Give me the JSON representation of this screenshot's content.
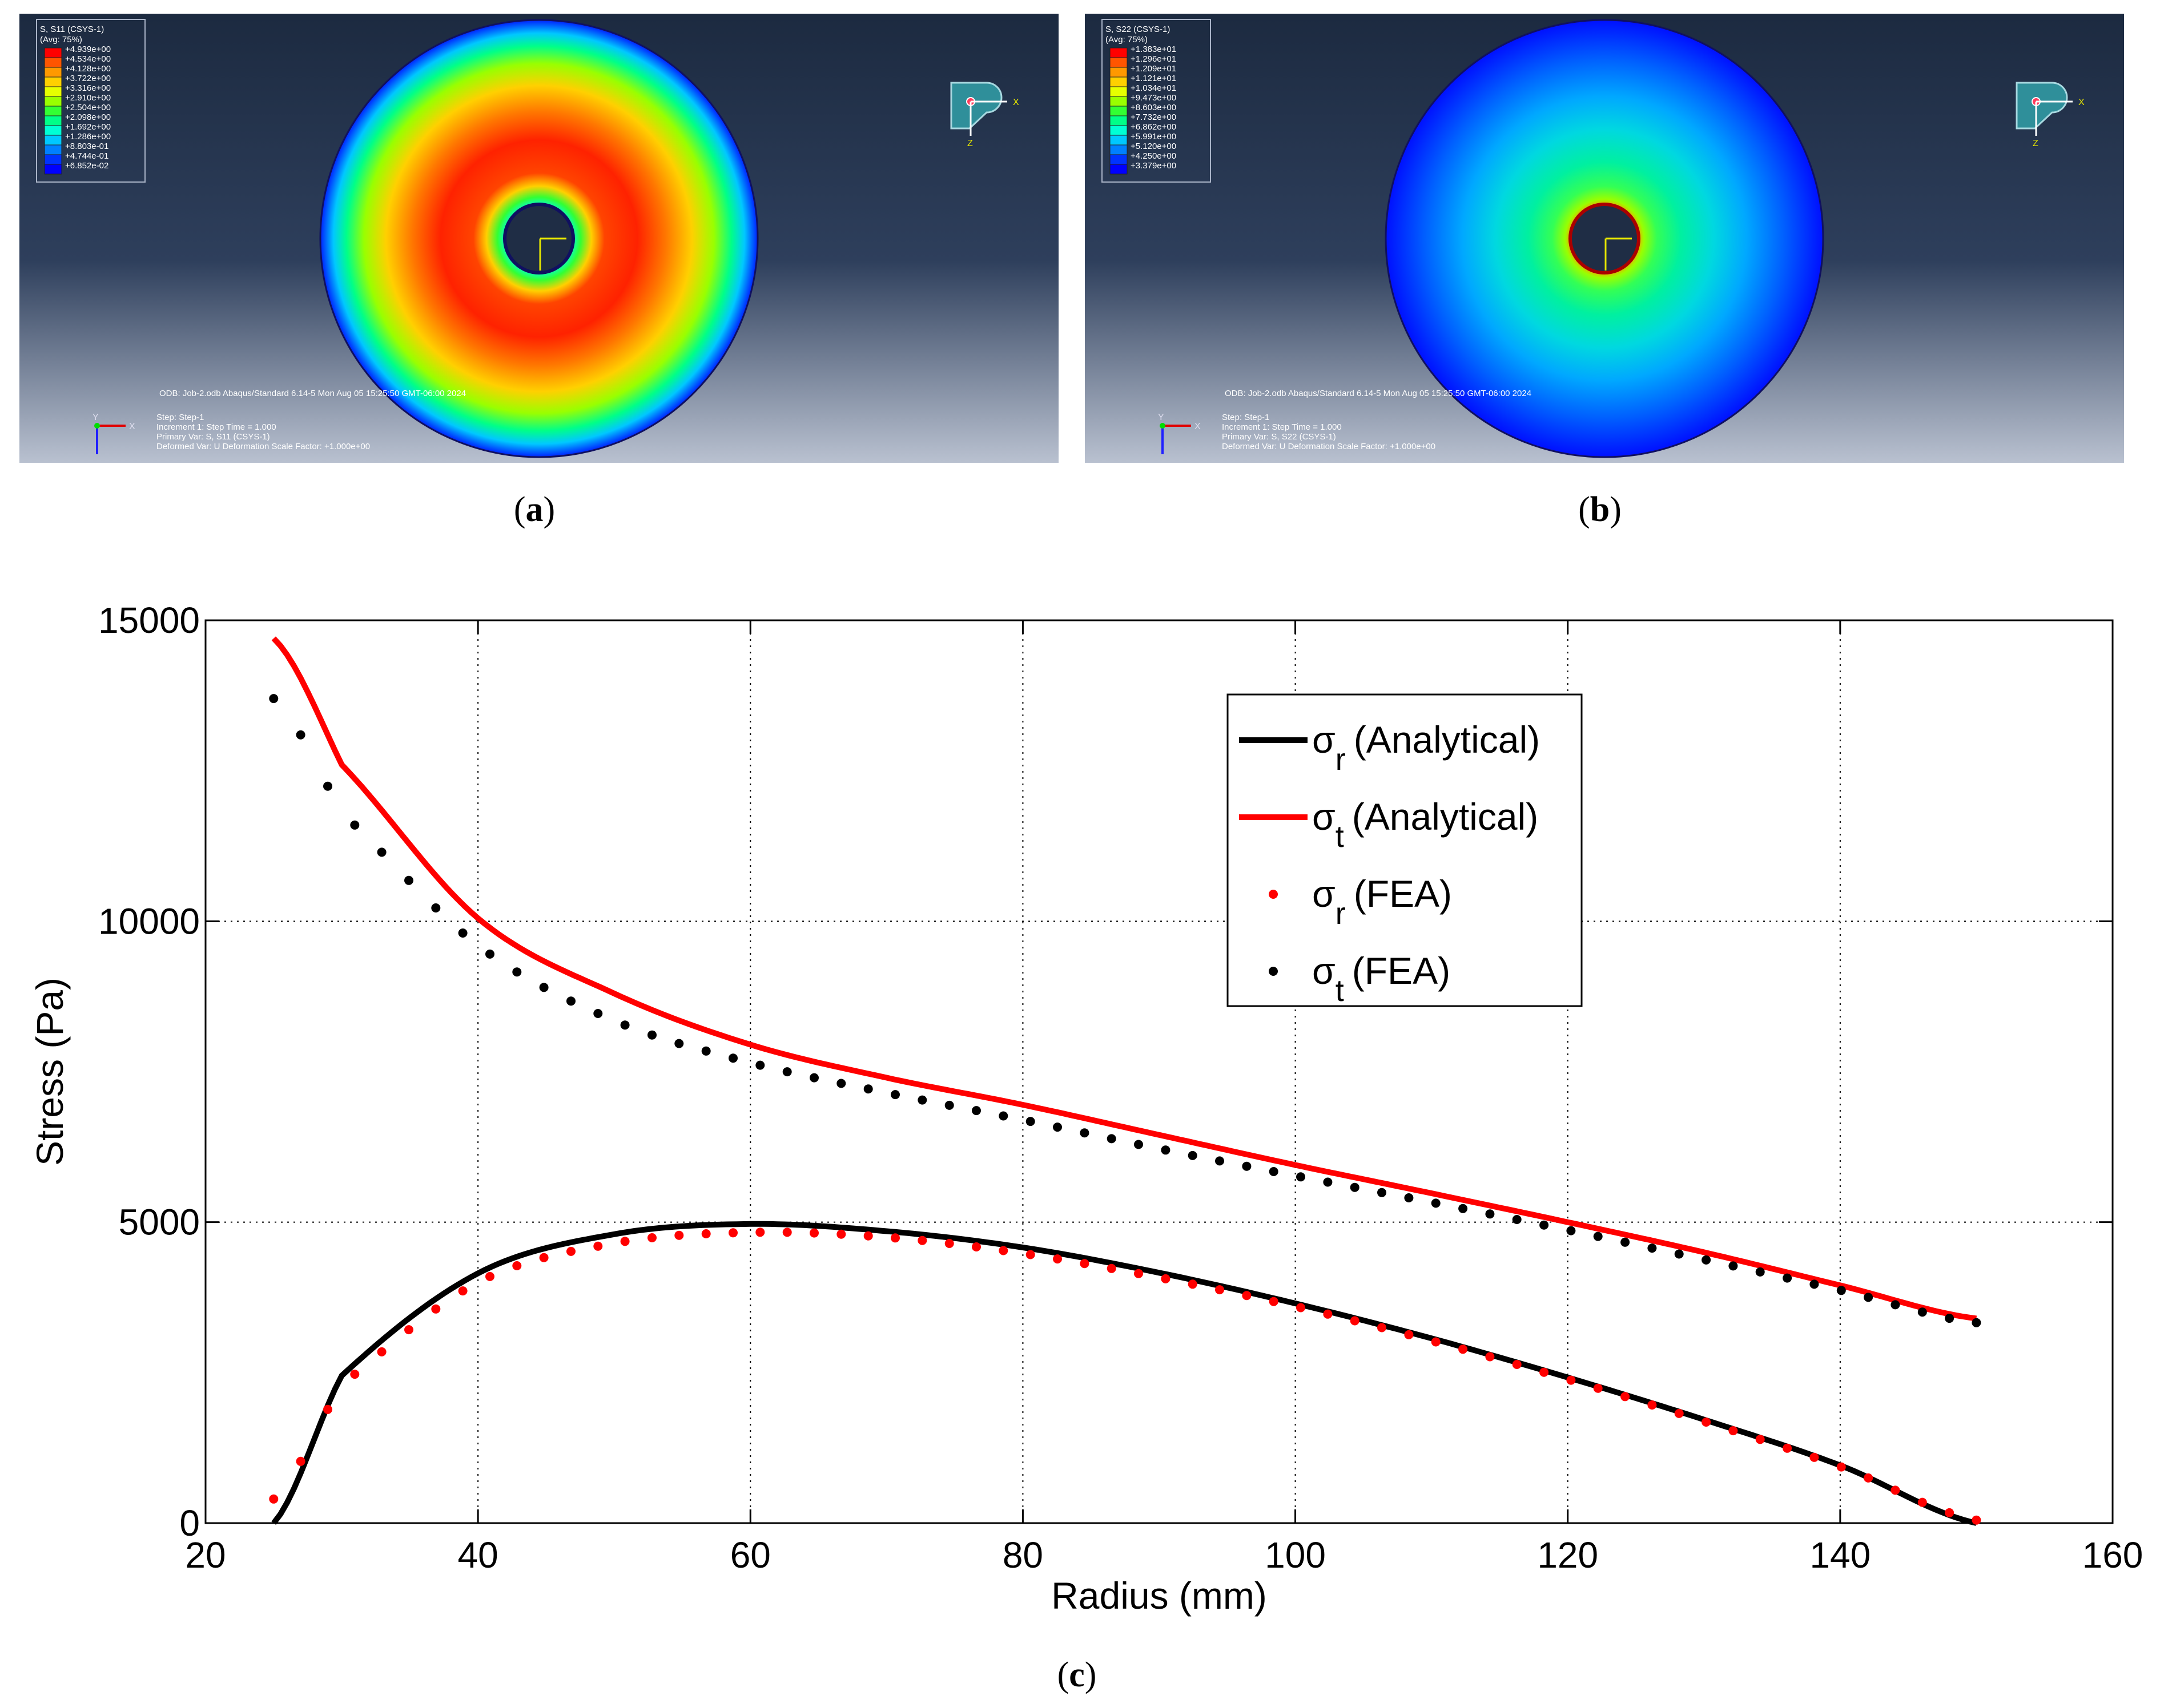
{
  "panels": [
    {
      "id": "a",
      "caption_label": "a",
      "legend_title": "S, S11 (CSYS-1)",
      "legend_avg": "(Avg: 75%)",
      "legend_values": [
        "+4.939e+00",
        "+4.534e+00",
        "+4.128e+00",
        "+3.722e+00",
        "+3.316e+00",
        "+2.910e+00",
        "+2.504e+00",
        "+2.098e+00",
        "+1.692e+00",
        "+1.286e+00",
        "+8.803e-01",
        "+4.744e-01",
        "+6.852e-02"
      ],
      "odb_line": "ODB: Job-2.odb    Abaqus/Standard 6.14-5    Mon Aug 05 15:25:50 GMT-06:00 2024",
      "step_line": "Step: Step-1",
      "increment_line": "Increment      1: Step Time =     1.000",
      "primary_var_line": "Primary Var: S, S11 (CSYS-1)",
      "deformed_var_line": "Deformed Var: U   Deformation Scale Factor: +1.000e+00",
      "axis_x": "X",
      "axis_y": "Y",
      "axis_z": "Z"
    },
    {
      "id": "b",
      "caption_label": "b",
      "legend_title": "S, S22 (CSYS-1)",
      "legend_avg": "(Avg: 75%)",
      "legend_values": [
        "+1.383e+01",
        "+1.296e+01",
        "+1.209e+01",
        "+1.121e+01",
        "+1.034e+01",
        "+9.473e+00",
        "+8.603e+00",
        "+7.732e+00",
        "+6.862e+00",
        "+5.991e+00",
        "+5.120e+00",
        "+4.250e+00",
        "+3.379e+00"
      ],
      "odb_line": "ODB: Job-2.odb    Abaqus/Standard 6.14-5    Mon Aug 05 15:25:50 GMT-06:00 2024",
      "step_line": "Step: Step-1",
      "increment_line": "Increment      1: Step Time =     1.000",
      "primary_var_line": "Primary Var: S, S22 (CSYS-1)",
      "deformed_var_line": "Deformed Var: U   Deformation Scale Factor: +1.000e+00",
      "axis_x": "X",
      "axis_y": "Y",
      "axis_z": "Z"
    }
  ],
  "legend_colors": [
    "#ff0000",
    "#ff5500",
    "#ff9900",
    "#ffd000",
    "#e6ff00",
    "#99ff00",
    "#33ff33",
    "#00ff88",
    "#00ffd5",
    "#00c8ff",
    "#0080ff",
    "#0033ff",
    "#0000ff"
  ],
  "chart_caption_label": "c",
  "chart_data": {
    "type": "line",
    "xlabel": "Radius (mm)",
    "ylabel": "Stress (Pa)",
    "xlim": [
      20,
      160
    ],
    "ylim": [
      0,
      15000
    ],
    "xticks": [
      20,
      40,
      60,
      80,
      100,
      120,
      140,
      160
    ],
    "yticks": [
      0,
      5000,
      10000,
      15000
    ],
    "grid": true,
    "legend_position": "top-right",
    "inner_radius": 25,
    "outer_radius": 150,
    "series": [
      {
        "name": "σr (Analytical)",
        "symbol": "σ",
        "sub": "r",
        "suffix": "(Analytical)",
        "style": "line",
        "color": "#000000"
      },
      {
        "name": "σt (Analytical)",
        "symbol": "σ",
        "sub": "t",
        "suffix": "(Analytical)",
        "style": "line",
        "color": "#ff0000"
      },
      {
        "name": "σr (FEA)",
        "symbol": "σ",
        "sub": "r",
        "suffix": "(FEA)",
        "style": "markers",
        "color": "#ff0000"
      },
      {
        "name": "σt (FEA)",
        "symbol": "σ",
        "sub": "t",
        "suffix": "(FEA)",
        "style": "markers",
        "color": "#000000"
      }
    ],
    "sample_points": {
      "sigma_r_analytical": [
        [
          25,
          0
        ],
        [
          30,
          2450
        ],
        [
          40,
          4150
        ],
        [
          50,
          4800
        ],
        [
          60,
          4970
        ],
        [
          70,
          4850
        ],
        [
          80,
          4580
        ],
        [
          90,
          4160
        ],
        [
          100,
          3650
        ],
        [
          110,
          3070
        ],
        [
          120,
          2420
        ],
        [
          130,
          1720
        ],
        [
          140,
          960
        ],
        [
          150,
          0
        ]
      ],
      "sigma_t_analytical": [
        [
          25,
          14700
        ],
        [
          30,
          12600
        ],
        [
          40,
          10050
        ],
        [
          50,
          8800
        ],
        [
          60,
          7950
        ],
        [
          70,
          7400
        ],
        [
          80,
          6950
        ],
        [
          90,
          6450
        ],
        [
          100,
          5950
        ],
        [
          110,
          5480
        ],
        [
          120,
          5000
        ],
        [
          130,
          4500
        ],
        [
          140,
          3950
        ],
        [
          150,
          3400
        ]
      ],
      "sigma_r_fea": [
        [
          25,
          400
        ],
        [
          30,
          2300
        ],
        [
          40,
          4000
        ],
        [
          50,
          4650
        ],
        [
          60,
          4830
        ],
        [
          70,
          4750
        ],
        [
          80,
          4480
        ],
        [
          90,
          4080
        ],
        [
          100,
          3600
        ],
        [
          110,
          3030
        ],
        [
          120,
          2390
        ],
        [
          130,
          1690
        ],
        [
          140,
          940
        ],
        [
          150,
          50
        ]
      ],
      "sigma_t_fea": [
        [
          25,
          13700
        ],
        [
          30,
          11800
        ],
        [
          40,
          9600
        ],
        [
          50,
          8350
        ],
        [
          60,
          7650
        ],
        [
          70,
          7150
        ],
        [
          80,
          6700
        ],
        [
          90,
          6220
        ],
        [
          100,
          5770
        ],
        [
          110,
          5330
        ],
        [
          120,
          4870
        ],
        [
          130,
          4380
        ],
        [
          140,
          3870
        ],
        [
          150,
          3330
        ]
      ]
    }
  }
}
